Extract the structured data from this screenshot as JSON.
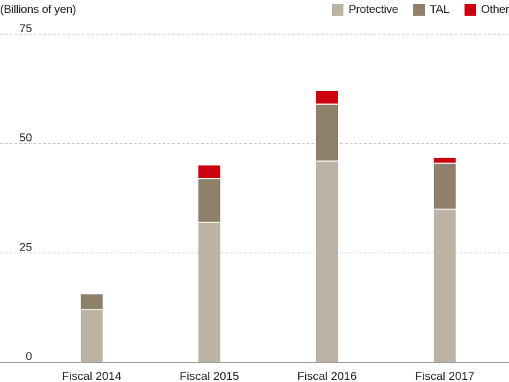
{
  "colors": {
    "protective": "#bdb3a4",
    "tal": "#8f806b",
    "other": "#cc0011",
    "grid": "#bfbfbf",
    "axis": "#999999"
  },
  "chart_data": {
    "type": "bar",
    "stacked": true,
    "title": "",
    "ylabel": "(Billions of yen)",
    "xlabel": "",
    "ylim": [
      0,
      75
    ],
    "yticks": [
      0,
      25,
      50,
      75
    ],
    "grid": true,
    "legend_position": "top-right",
    "categories": [
      "Fiscal 2014",
      "Fiscal 2015",
      "Fiscal 2016",
      "Fiscal 2017"
    ],
    "series": [
      {
        "name": "Protective",
        "color_key": "protective",
        "values": [
          12,
          32,
          46,
          35
        ]
      },
      {
        "name": "TAL",
        "color_key": "tal",
        "values": [
          3.5,
          10,
          13,
          10.5
        ]
      },
      {
        "name": "Other",
        "color_key": "other",
        "values": [
          0,
          3,
          3,
          1.2
        ]
      }
    ]
  }
}
